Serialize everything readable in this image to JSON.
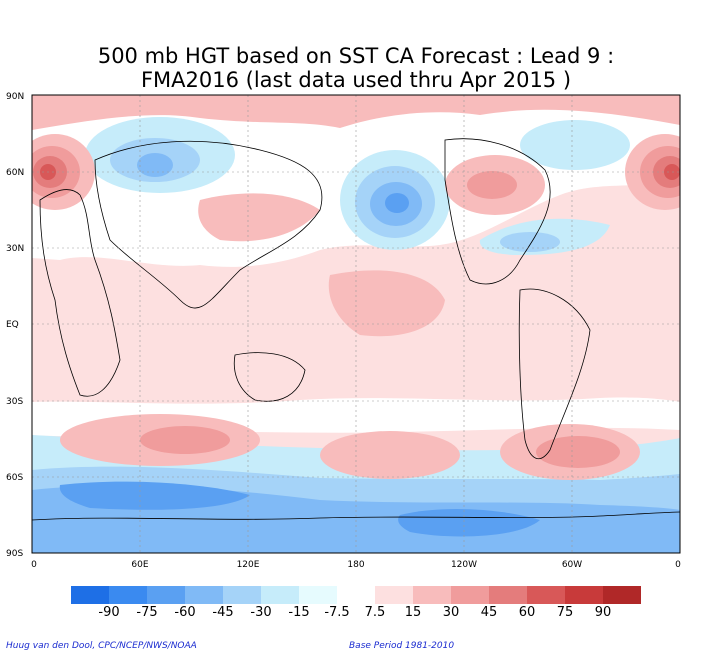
{
  "title": {
    "line1": "500 mb HGT based on SST CA Forecast : Lead 9 :",
    "line2": "FMA2016 (last data used thru Apr 2015 )"
  },
  "map": {
    "lat_labels": [
      "90N",
      "60N",
      "30N",
      "EQ",
      "30S",
      "60S",
      "90S"
    ],
    "lon_labels": [
      "0",
      "60E",
      "120E",
      "180",
      "120W",
      "60W",
      "0"
    ]
  },
  "colorbar": {
    "labels": [
      "-90",
      "-75",
      "-60",
      "-45",
      "-30",
      "-15",
      "-7.5",
      "7.5",
      "15",
      "30",
      "45",
      "60",
      "75",
      "90"
    ],
    "colors": [
      "#1e6fe6",
      "#3a8af0",
      "#5aa0f2",
      "#80baf6",
      "#a5d3f8",
      "#c6ecfa",
      "#e6fbfe",
      "#ffffff",
      "#fde0e0",
      "#f8bcbc",
      "#f09c9c",
      "#e47c7c",
      "#d85858",
      "#c83a3a",
      "#b02828"
    ]
  },
  "credits": {
    "left": "Huug van den Dool, CPC/NCEP/NWS/NOAA",
    "right": "Base Period 1981-2010"
  }
}
